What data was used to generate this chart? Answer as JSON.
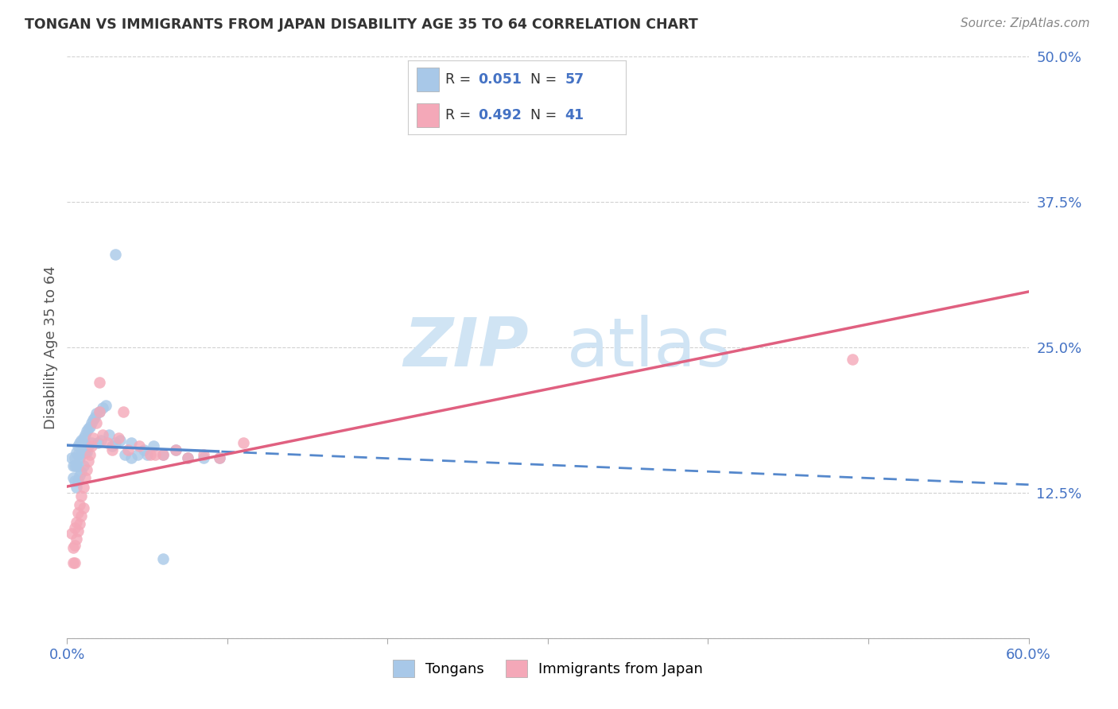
{
  "title": "TONGAN VS IMMIGRANTS FROM JAPAN DISABILITY AGE 35 TO 64 CORRELATION CHART",
  "source": "Source: ZipAtlas.com",
  "ylabel": "Disability Age 35 to 64",
  "xlim": [
    0.0,
    0.6
  ],
  "ylim": [
    0.0,
    0.5
  ],
  "xtick_labels": [
    "0.0%",
    "",
    "",
    "",
    "",
    "",
    "60.0%"
  ],
  "ytick_labels": [
    "",
    "12.5%",
    "25.0%",
    "37.5%",
    "50.0%"
  ],
  "r_blue": "0.051",
  "n_blue": "57",
  "r_pink": "0.492",
  "n_pink": "41",
  "tongans_x": [
    0.003,
    0.004,
    0.004,
    0.005,
    0.005,
    0.005,
    0.006,
    0.006,
    0.006,
    0.007,
    0.007,
    0.007,
    0.007,
    0.008,
    0.008,
    0.008,
    0.009,
    0.009,
    0.009,
    0.01,
    0.01,
    0.01,
    0.011,
    0.011,
    0.012,
    0.012,
    0.013,
    0.013,
    0.014,
    0.015,
    0.015,
    0.016,
    0.017,
    0.018,
    0.019,
    0.02,
    0.021,
    0.022,
    0.024,
    0.026,
    0.028,
    0.03,
    0.033,
    0.036,
    0.04,
    0.044,
    0.048,
    0.054,
    0.06,
    0.068,
    0.075,
    0.085,
    0.095,
    0.03,
    0.04,
    0.05,
    0.06
  ],
  "tongans_y": [
    0.155,
    0.148,
    0.138,
    0.155,
    0.148,
    0.135,
    0.16,
    0.148,
    0.13,
    0.165,
    0.158,
    0.148,
    0.135,
    0.168,
    0.155,
    0.14,
    0.17,
    0.158,
    0.143,
    0.172,
    0.163,
    0.148,
    0.175,
    0.16,
    0.178,
    0.16,
    0.18,
    0.165,
    0.182,
    0.185,
    0.168,
    0.188,
    0.19,
    0.193,
    0.168,
    0.195,
    0.17,
    0.198,
    0.2,
    0.175,
    0.165,
    0.168,
    0.17,
    0.158,
    0.155,
    0.158,
    0.162,
    0.165,
    0.158,
    0.162,
    0.155,
    0.155,
    0.155,
    0.33,
    0.168,
    0.158,
    0.068
  ],
  "japan_x": [
    0.003,
    0.004,
    0.004,
    0.005,
    0.005,
    0.005,
    0.006,
    0.006,
    0.007,
    0.007,
    0.008,
    0.008,
    0.009,
    0.009,
    0.01,
    0.01,
    0.011,
    0.012,
    0.013,
    0.014,
    0.015,
    0.016,
    0.018,
    0.02,
    0.022,
    0.025,
    0.028,
    0.032,
    0.038,
    0.045,
    0.052,
    0.06,
    0.068,
    0.075,
    0.085,
    0.095,
    0.11,
    0.02,
    0.035,
    0.055,
    0.49
  ],
  "japan_y": [
    0.09,
    0.078,
    0.065,
    0.095,
    0.08,
    0.065,
    0.1,
    0.085,
    0.108,
    0.092,
    0.115,
    0.098,
    0.122,
    0.105,
    0.13,
    0.112,
    0.138,
    0.145,
    0.152,
    0.158,
    0.165,
    0.172,
    0.185,
    0.195,
    0.175,
    0.168,
    0.162,
    0.172,
    0.162,
    0.165,
    0.158,
    0.158,
    0.162,
    0.155,
    0.158,
    0.155,
    0.168,
    0.22,
    0.195,
    0.158,
    0.24
  ],
  "blue_color": "#a8c8e8",
  "pink_color": "#f4a8b8",
  "blue_line_color": "#5588cc",
  "pink_line_color": "#e06080",
  "watermark_zip": "ZIP",
  "watermark_atlas": "atlas",
  "watermark_color": "#d0e4f4"
}
